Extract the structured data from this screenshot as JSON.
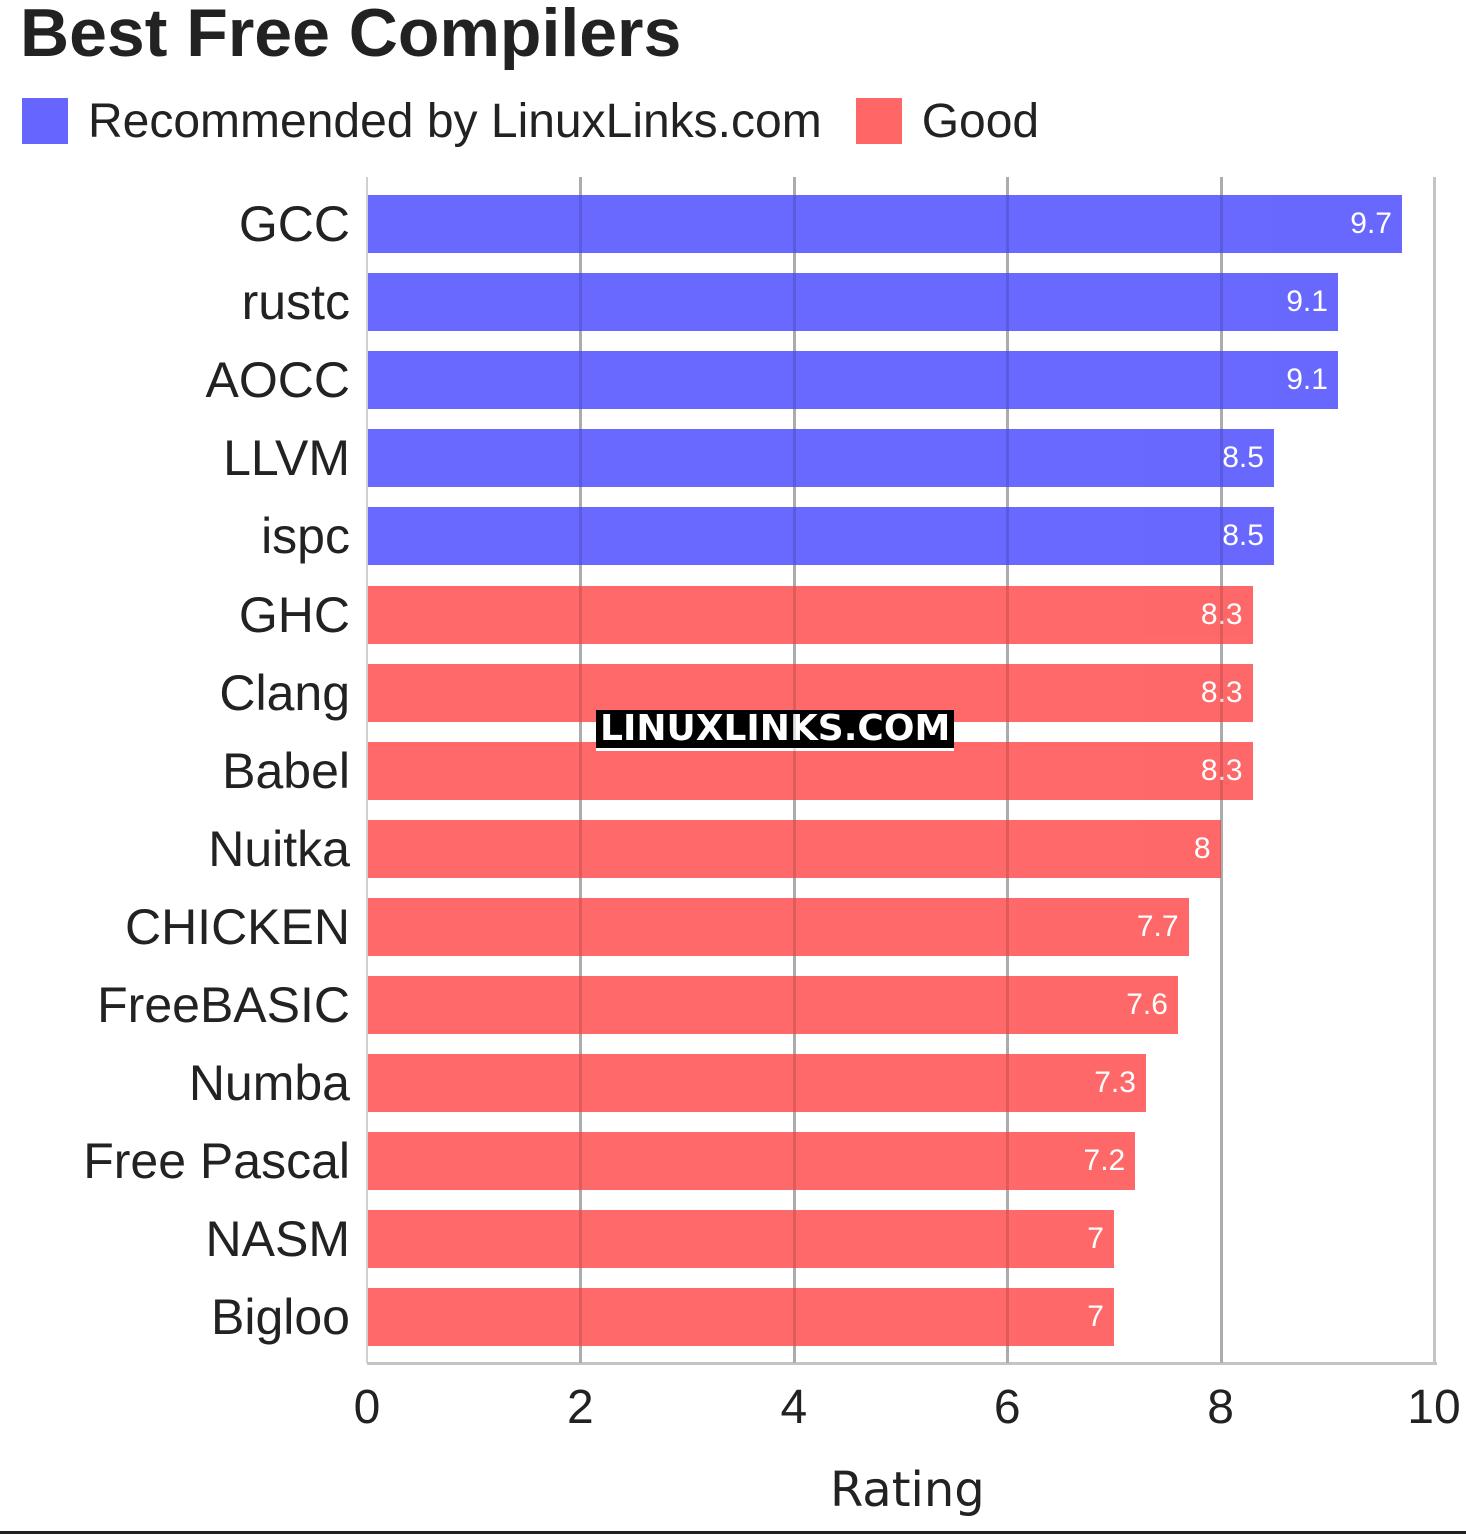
{
  "chart_data": {
    "type": "bar",
    "orientation": "horizontal",
    "title": "Best Free Compilers",
    "xlabel": "Rating",
    "ylabel": "",
    "xlim": [
      0,
      10
    ],
    "xticks": [
      "0",
      "2",
      "4",
      "6",
      "8",
      "10"
    ],
    "grid": true,
    "legend_position": "top",
    "legend": [
      {
        "label": "Recommended by LinuxLinks.com",
        "color": "#6666ff"
      },
      {
        "label": "Good",
        "color": "#ff6666"
      }
    ],
    "categories": [
      "GCC",
      "rustc",
      "AOCC",
      "LLVM",
      "ispc",
      "GHC",
      "Clang",
      "Babel",
      "Nuitka",
      "CHICKEN",
      "FreeBASIC",
      "Numba",
      "Free Pascal",
      "NASM",
      "Bigloo"
    ],
    "values": [
      9.7,
      9.1,
      9.1,
      8.5,
      8.5,
      8.3,
      8.3,
      8.3,
      8,
      7.7,
      7.6,
      7.3,
      7.2,
      7,
      7
    ],
    "value_labels": [
      "9.7",
      "9.1",
      "9.1",
      "8.5",
      "8.5",
      "8.3",
      "8.3",
      "8.3",
      "8",
      "7.7",
      "7.6",
      "7.3",
      "7.2",
      "7",
      "7"
    ],
    "groups": [
      "Recommended by LinuxLinks.com",
      "Recommended by LinuxLinks.com",
      "Recommended by LinuxLinks.com",
      "Recommended by LinuxLinks.com",
      "Recommended by LinuxLinks.com",
      "Good",
      "Good",
      "Good",
      "Good",
      "Good",
      "Good",
      "Good",
      "Good",
      "Good",
      "Good"
    ],
    "annotations": [
      "LINUXLINKS.COM"
    ]
  },
  "colors": {
    "recommended": "#6666ff",
    "good": "#ff6666",
    "grid": "#c4c4c4",
    "text": "#222222"
  },
  "watermark": "LINUXLINKS.COM"
}
